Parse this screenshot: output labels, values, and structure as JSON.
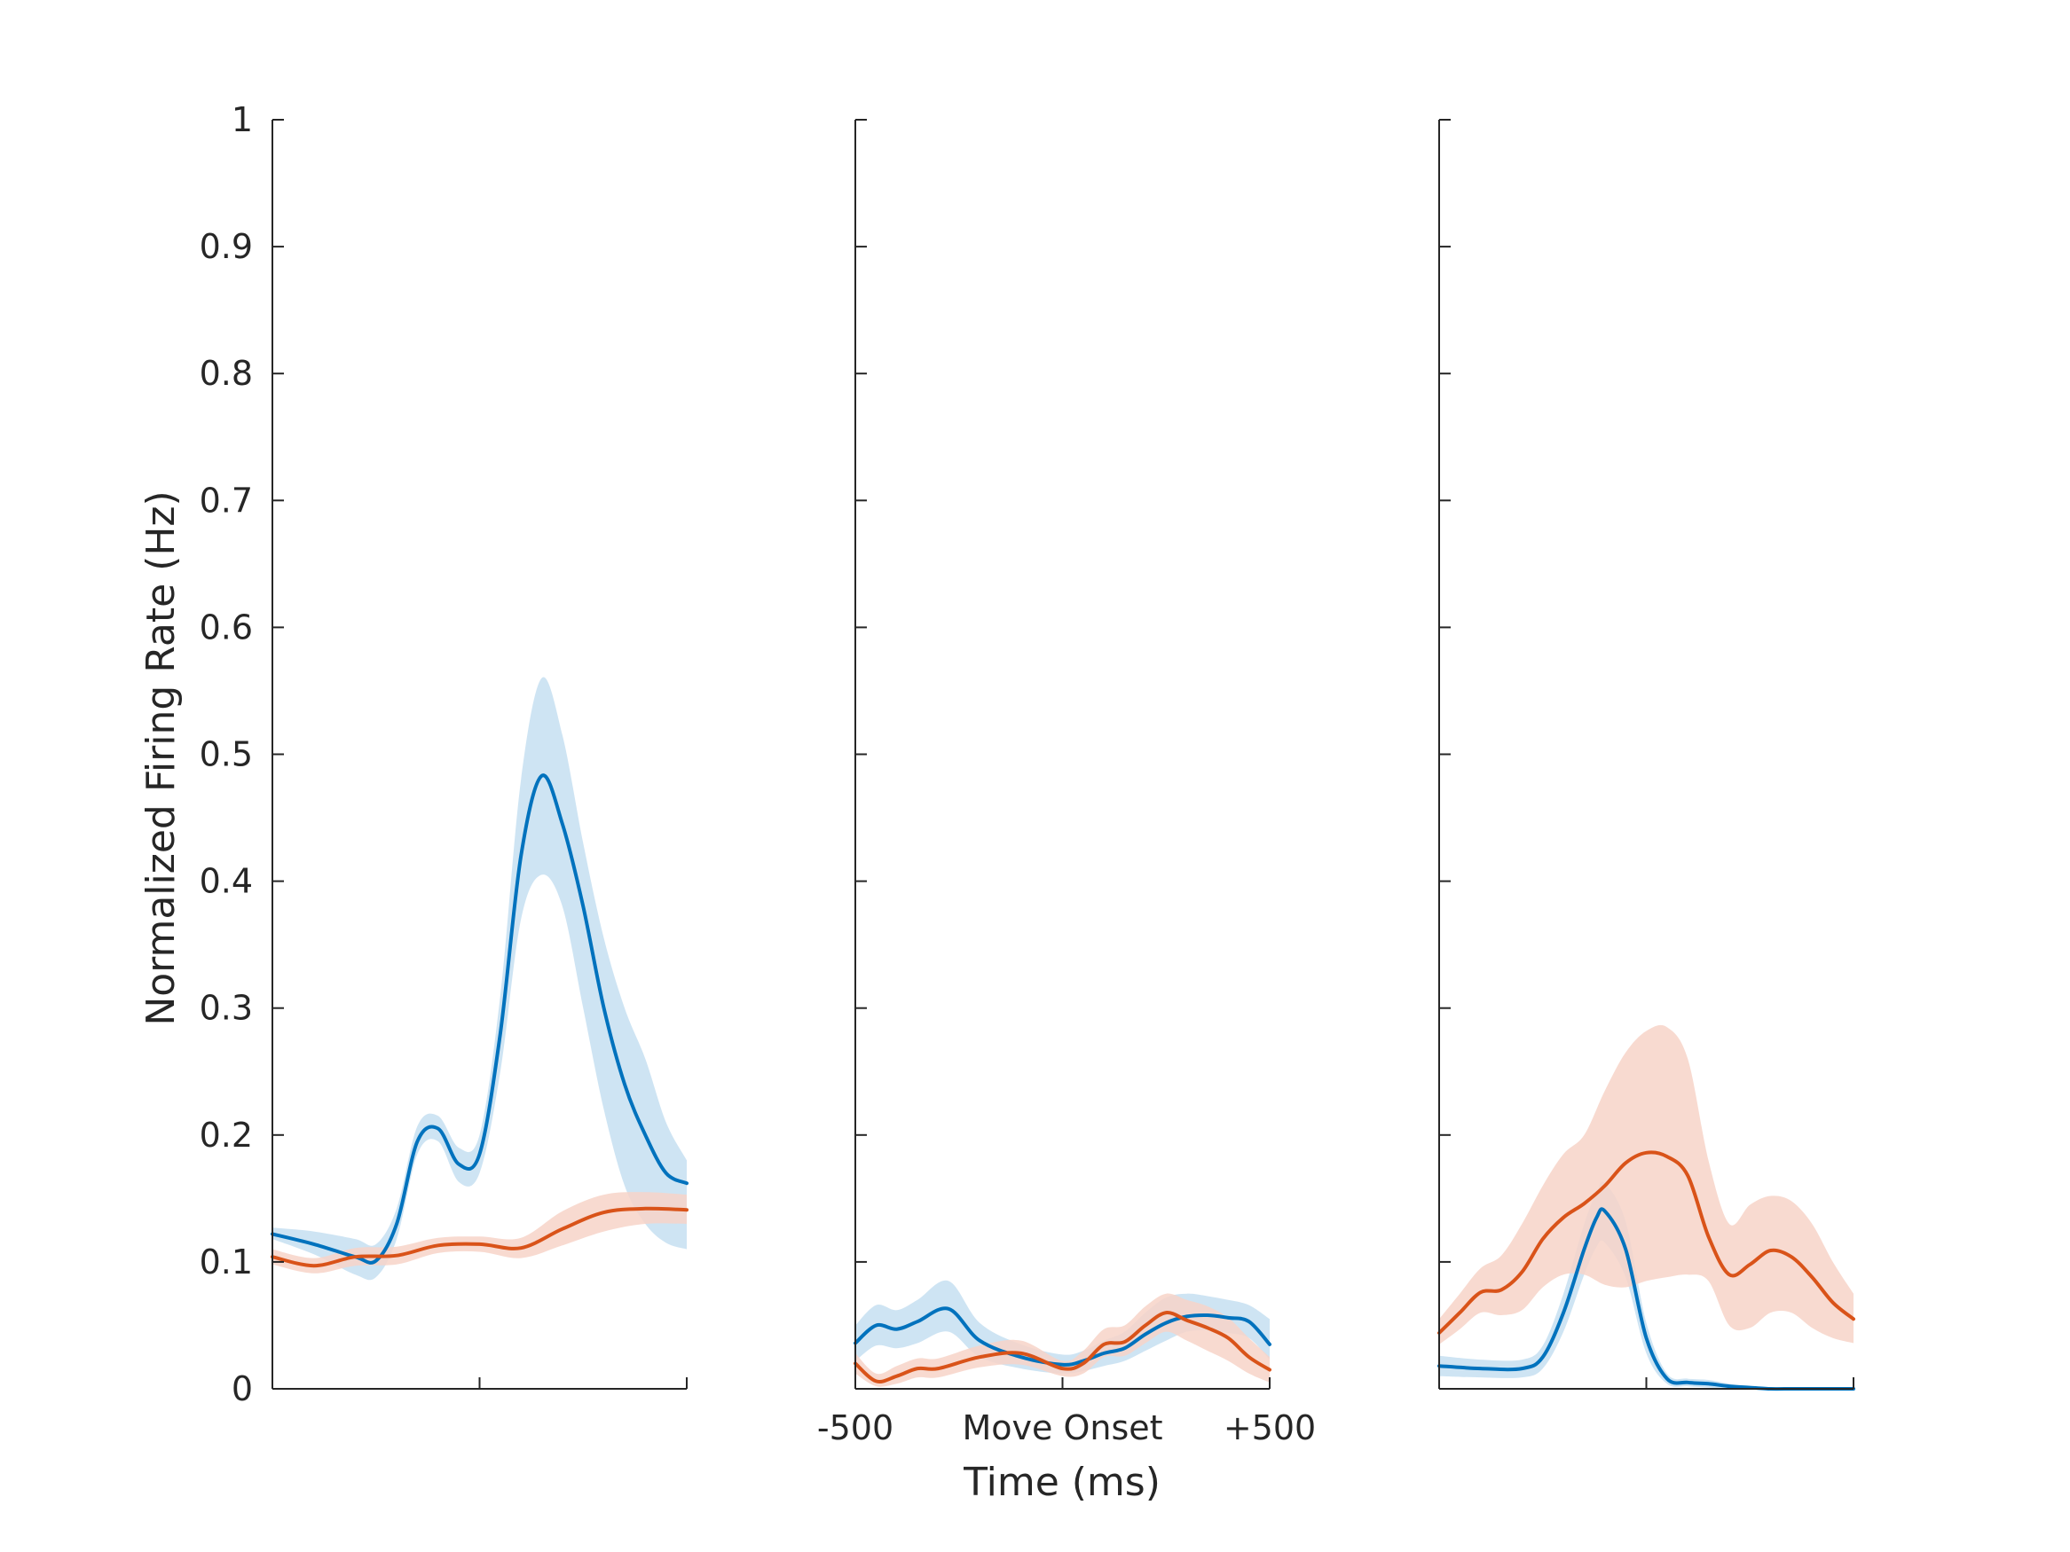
{
  "chart_data": {
    "type": "line",
    "ylabel": "Normalized Firing Rate (Hz)",
    "xlabel": "Time (ms)",
    "ylim": [
      0,
      1
    ],
    "yticks": [
      "0",
      "0.1",
      "0.2",
      "0.3",
      "0.4",
      "0.5",
      "0.6",
      "0.7",
      "0.8",
      "0.9",
      "1"
    ],
    "xlim": [
      -500,
      500
    ],
    "xtick_labels": [
      "-500",
      "Move Onset",
      "+500"
    ],
    "colors": {
      "blue": "#0072BD",
      "blue_band": "#c6dff1",
      "orange": "#D95319",
      "orange_band": "#f7d4c8"
    },
    "grid": false,
    "panels": [
      {
        "series": [
          {
            "color": "blue",
            "x": [
              -500,
              -400,
              -300,
              -250,
              -200,
              -150,
              -100,
              -50,
              0,
              50,
              100,
              150,
              200,
              250,
              300,
              350,
              400,
              450,
              500
            ],
            "y": [
              0.122,
              0.114,
              0.104,
              0.101,
              0.13,
              0.195,
              0.205,
              0.177,
              0.185,
              0.28,
              0.42,
              0.483,
              0.445,
              0.38,
              0.3,
              0.24,
              0.2,
              0.17,
              0.162
            ],
            "lower": [
              0.118,
              0.106,
              0.09,
              0.088,
              0.118,
              0.185,
              0.195,
              0.163,
              0.17,
              0.25,
              0.37,
              0.405,
              0.38,
              0.3,
              0.22,
              0.16,
              0.13,
              0.115,
              0.11
            ],
            "upper": [
              0.127,
              0.124,
              0.118,
              0.114,
              0.142,
              0.207,
              0.215,
              0.19,
              0.2,
              0.31,
              0.48,
              0.56,
              0.515,
              0.43,
              0.355,
              0.3,
              0.26,
              0.21,
              0.18
            ]
          },
          {
            "color": "orange",
            "x": [
              -500,
              -400,
              -300,
              -200,
              -100,
              0,
              100,
              200,
              300,
              400,
              500
            ],
            "y": [
              0.104,
              0.097,
              0.104,
              0.105,
              0.113,
              0.114,
              0.111,
              0.126,
              0.139,
              0.142,
              0.141
            ],
            "lower": [
              0.098,
              0.091,
              0.097,
              0.098,
              0.107,
              0.108,
              0.103,
              0.113,
              0.124,
              0.13,
              0.13
            ],
            "upper": [
              0.11,
              0.103,
              0.111,
              0.112,
              0.119,
              0.12,
              0.119,
              0.14,
              0.153,
              0.155,
              0.153
            ]
          }
        ]
      },
      {
        "series": [
          {
            "color": "blue",
            "x": [
              -500,
              -450,
              -400,
              -350,
              -275,
              -200,
              -100,
              0,
              50,
              100,
              150,
              200,
              250,
              300,
              350,
              400,
              450,
              500
            ],
            "y": [
              0.036,
              0.05,
              0.047,
              0.053,
              0.063,
              0.038,
              0.025,
              0.019,
              0.022,
              0.028,
              0.032,
              0.043,
              0.052,
              0.057,
              0.058,
              0.056,
              0.053,
              0.035
            ],
            "lower": [
              0.022,
              0.034,
              0.032,
              0.036,
              0.045,
              0.025,
              0.016,
              0.012,
              0.014,
              0.018,
              0.022,
              0.03,
              0.038,
              0.045,
              0.046,
              0.044,
              0.04,
              0.023
            ],
            "upper": [
              0.05,
              0.066,
              0.062,
              0.07,
              0.085,
              0.052,
              0.035,
              0.027,
              0.03,
              0.038,
              0.045,
              0.06,
              0.072,
              0.075,
              0.073,
              0.07,
              0.066,
              0.055
            ]
          },
          {
            "color": "orange",
            "x": [
              -500,
              -450,
              -400,
              -350,
              -300,
              -200,
              -100,
              0,
              50,
              100,
              150,
              200,
              250,
              300,
              350,
              400,
              450,
              500
            ],
            "y": [
              0.02,
              0.006,
              0.01,
              0.016,
              0.016,
              0.025,
              0.028,
              0.016,
              0.02,
              0.035,
              0.037,
              0.05,
              0.06,
              0.054,
              0.048,
              0.04,
              0.025,
              0.015
            ],
            "lower": [
              0.012,
              0.002,
              0.004,
              0.009,
              0.009,
              0.017,
              0.019,
              0.01,
              0.012,
              0.025,
              0.026,
              0.036,
              0.045,
              0.038,
              0.03,
              0.022,
              0.012,
              0.005
            ],
            "upper": [
              0.028,
              0.012,
              0.018,
              0.024,
              0.024,
              0.034,
              0.038,
              0.022,
              0.03,
              0.047,
              0.05,
              0.065,
              0.075,
              0.07,
              0.065,
              0.056,
              0.04,
              0.025
            ]
          }
        ]
      },
      {
        "series": [
          {
            "color": "blue",
            "x": [
              -500,
              -400,
              -300,
              -250,
              -200,
              -150,
              -120,
              -100,
              -50,
              0,
              50,
              100,
              150,
              200,
              250,
              300,
              350,
              400,
              450,
              500
            ],
            "y": [
              0.018,
              0.016,
              0.016,
              0.025,
              0.06,
              0.11,
              0.135,
              0.14,
              0.11,
              0.04,
              0.008,
              0.005,
              0.004,
              0.002,
              0.001,
              0.0,
              0.0,
              0.0,
              0.0,
              0.0
            ],
            "lower": [
              0.01,
              0.009,
              0.009,
              0.016,
              0.045,
              0.09,
              0.112,
              0.115,
              0.088,
              0.028,
              0.004,
              0.002,
              0.001,
              0.0,
              0.0,
              0.0,
              0.0,
              0.0,
              0.0,
              0.0
            ],
            "upper": [
              0.026,
              0.023,
              0.023,
              0.034,
              0.075,
              0.13,
              0.155,
              0.162,
              0.132,
              0.052,
              0.012,
              0.008,
              0.007,
              0.004,
              0.002,
              0.001,
              0.0,
              0.0,
              0.0,
              0.0
            ]
          },
          {
            "color": "orange",
            "x": [
              -500,
              -450,
              -400,
              -350,
              -300,
              -250,
              -200,
              -150,
              -100,
              -50,
              0,
              50,
              100,
              150,
              200,
              250,
              300,
              350,
              400,
              450,
              500
            ],
            "y": [
              0.044,
              0.06,
              0.076,
              0.078,
              0.092,
              0.118,
              0.135,
              0.146,
              0.16,
              0.178,
              0.186,
              0.183,
              0.168,
              0.12,
              0.09,
              0.098,
              0.109,
              0.104,
              0.088,
              0.068,
              0.055
            ],
            "lower": [
              0.035,
              0.047,
              0.06,
              0.058,
              0.062,
              0.08,
              0.09,
              0.09,
              0.082,
              0.08,
              0.085,
              0.088,
              0.09,
              0.085,
              0.05,
              0.048,
              0.06,
              0.06,
              0.048,
              0.04,
              0.036
            ],
            "upper": [
              0.055,
              0.075,
              0.095,
              0.105,
              0.13,
              0.16,
              0.185,
              0.2,
              0.235,
              0.265,
              0.282,
              0.285,
              0.26,
              0.18,
              0.13,
              0.145,
              0.152,
              0.148,
              0.13,
              0.1,
              0.075
            ]
          }
        ]
      }
    ]
  }
}
